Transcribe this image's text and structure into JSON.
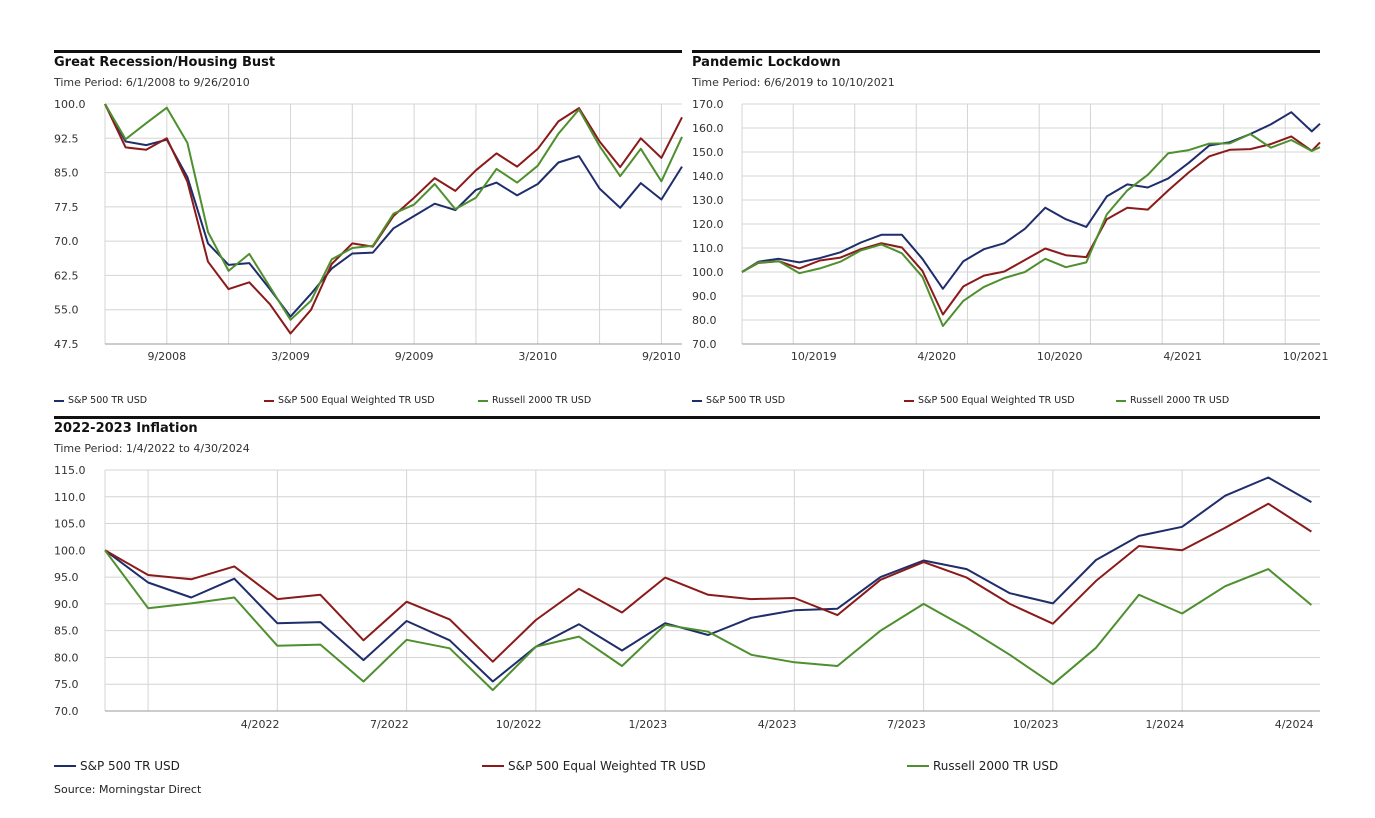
{
  "colors": {
    "sp500": "#1f2d6b",
    "equal": "#8b1a1a",
    "russell": "#4e8f2e",
    "grid": "#d4d4d4",
    "rule": "#111111"
  },
  "source": "Source: Morningstar Direct",
  "chart_data": [
    {
      "type": "line",
      "title": "Great Recession/Housing Bust",
      "subtitle": "Time Period: 6/1/2008 to 9/26/2010",
      "ylim": [
        47.5,
        100.0
      ],
      "yticks": [
        "100.0",
        "92.5",
        "85.0",
        "77.5",
        "70.0",
        "62.5",
        "55.0",
        "47.5"
      ],
      "xlim": [
        0,
        28
      ],
      "xticks": [
        {
          "label": "9/2008",
          "x": 3
        },
        {
          "label": "3/2009",
          "x": 9
        },
        {
          "label": "9/2009",
          "x": 15
        },
        {
          "label": "3/2010",
          "x": 21
        },
        {
          "label": "9/2010",
          "x": 27
        }
      ],
      "xgrid": [
        0,
        3,
        6,
        9,
        12,
        15,
        18,
        21,
        24,
        27
      ],
      "grid": true,
      "legend_position": "bottom",
      "series": [
        {
          "name": "S&P 500 TR USD",
          "color_key": "sp500",
          "x": [
            0,
            1,
            2,
            3,
            4,
            5,
            6,
            7,
            8,
            9,
            10,
            11,
            12,
            13,
            14,
            15,
            16,
            17,
            18,
            19,
            20,
            21,
            22,
            23,
            24,
            25,
            26,
            27,
            28
          ],
          "y": [
            100.0,
            91.8,
            91.0,
            92.2,
            84.0,
            69.5,
            64.8,
            65.2,
            59.5,
            53.5,
            58.5,
            64.0,
            67.3,
            67.5,
            72.8,
            75.5,
            78.2,
            76.8,
            81.2,
            82.8,
            80.0,
            82.5,
            87.2,
            88.6,
            81.5,
            77.3,
            82.7,
            79.1,
            86.3
          ]
        },
        {
          "name": "S&P 500 Equal Weighted TR USD",
          "color_key": "equal",
          "x": [
            0,
            1,
            2,
            3,
            4,
            5,
            6,
            7,
            8,
            9,
            10,
            11,
            12,
            13,
            14,
            15,
            16,
            17,
            18,
            19,
            20,
            21,
            22,
            23,
            24,
            25,
            26,
            27,
            28
          ],
          "y": [
            100.0,
            90.5,
            90.0,
            92.5,
            83.0,
            65.5,
            59.5,
            61.0,
            56.2,
            49.8,
            55.0,
            65.0,
            69.5,
            68.8,
            75.5,
            79.5,
            83.8,
            81.0,
            85.5,
            89.2,
            86.3,
            90.2,
            96.2,
            99.1,
            91.8,
            86.2,
            92.5,
            88.2,
            97.1
          ]
        },
        {
          "name": "Russell 2000 TR USD",
          "color_key": "russell",
          "x": [
            0,
            1,
            2,
            3,
            4,
            5,
            6,
            7,
            8,
            9,
            10,
            11,
            12,
            13,
            14,
            15,
            16,
            17,
            18,
            19,
            20,
            21,
            22,
            23,
            24,
            25,
            26,
            27,
            28
          ],
          "y": [
            100.0,
            92.3,
            95.8,
            99.2,
            91.5,
            72.0,
            63.5,
            67.2,
            60.0,
            52.8,
            57.0,
            66.0,
            68.5,
            69.0,
            76.0,
            78.0,
            82.5,
            77.0,
            79.5,
            85.8,
            82.8,
            86.5,
            93.5,
            98.8,
            90.8,
            84.2,
            90.2,
            83.1,
            92.8
          ]
        }
      ]
    },
    {
      "type": "line",
      "title": "Pandemic Lockdown",
      "subtitle": "Time Period: 6/6/2019 to 10/10/2021",
      "ylim": [
        70.0,
        170.0
      ],
      "yticks": [
        "170.0",
        "160.0",
        "150.0",
        "140.0",
        "130.0",
        "120.0",
        "110.0",
        "100.0",
        "90.0",
        "80.0",
        "70.0"
      ],
      "xlim": [
        0,
        28.2
      ],
      "xticks": [
        {
          "label": "10/2019",
          "x": 3.5
        },
        {
          "label": "4/2020",
          "x": 9.5
        },
        {
          "label": "10/2020",
          "x": 15.5
        },
        {
          "label": "4/2021",
          "x": 21.5
        },
        {
          "label": "10/2021",
          "x": 27.5
        }
      ],
      "xgrid": [
        0,
        2.5,
        5.5,
        8.5,
        11.0,
        14.5,
        17.0,
        20.5,
        23.5,
        26.5
      ],
      "grid": true,
      "legend_position": "bottom",
      "series": [
        {
          "name": "S&P 500 TR USD",
          "color_key": "sp500",
          "x": [
            0,
            0.8,
            1.8,
            2.8,
            3.8,
            4.8,
            5.8,
            6.8,
            7.8,
            8.8,
            9.8,
            10.8,
            11.8,
            12.8,
            13.8,
            14.8,
            15.8,
            16.8,
            17.8,
            18.8,
            19.8,
            20.8,
            21.8,
            22.8,
            23.8,
            24.8,
            25.8,
            26.8,
            27.8,
            28.2
          ],
          "y": [
            100.0,
            104.3,
            105.5,
            104.0,
            105.8,
            108.2,
            112.3,
            115.5,
            115.5,
            105.5,
            93.0,
            104.5,
            109.5,
            112.0,
            118.0,
            126.8,
            122.0,
            118.8,
            131.5,
            136.5,
            135.2,
            139.0,
            145.5,
            152.7,
            154.1,
            157.5,
            161.5,
            166.6,
            158.6,
            161.8
          ]
        },
        {
          "name": "S&P 500 Equal Weighted TR USD",
          "color_key": "equal",
          "x": [
            0,
            0.8,
            1.8,
            2.8,
            3.8,
            4.8,
            5.8,
            6.8,
            7.8,
            8.8,
            9.8,
            10.8,
            11.8,
            12.8,
            13.8,
            14.8,
            15.8,
            16.8,
            17.8,
            18.8,
            19.8,
            20.8,
            21.8,
            22.8,
            23.8,
            24.8,
            25.8,
            26.8,
            27.8,
            28.2
          ],
          "y": [
            100.0,
            103.8,
            104.5,
            101.5,
            104.8,
            106.0,
            109.5,
            112.0,
            110.2,
            100.5,
            82.3,
            94.0,
            98.5,
            100.2,
            105.0,
            109.8,
            107.0,
            106.2,
            122.0,
            126.8,
            126.0,
            134.0,
            141.5,
            148.2,
            150.9,
            151.2,
            153.3,
            156.5,
            150.5,
            154.0
          ]
        },
        {
          "name": "Russell 2000 TR USD",
          "color_key": "russell",
          "x": [
            0,
            0.8,
            1.8,
            2.8,
            3.8,
            4.8,
            5.8,
            6.8,
            7.8,
            8.8,
            9.8,
            10.8,
            11.8,
            12.8,
            13.8,
            14.8,
            15.8,
            16.8,
            17.8,
            18.8,
            19.8,
            20.8,
            21.8,
            22.8,
            23.8,
            24.8,
            25.8,
            26.8,
            27.8,
            28.2
          ],
          "y": [
            100.0,
            104.0,
            104.5,
            99.5,
            101.5,
            104.3,
            109.0,
            111.5,
            107.8,
            98.0,
            77.5,
            88.0,
            93.8,
            97.5,
            100.0,
            105.5,
            102.0,
            104.0,
            124.0,
            134.0,
            140.5,
            149.5,
            150.8,
            153.5,
            153.6,
            157.5,
            151.8,
            155.0,
            150.4,
            152.0
          ]
        }
      ]
    },
    {
      "type": "line",
      "title": "2022-2023 Inflation",
      "subtitle": "Time Period: 1/4/2022 to 4/30/2024",
      "ylim": [
        70.0,
        115.0
      ],
      "yticks": [
        "115.0",
        "110.0",
        "105.0",
        "100.0",
        "95.0",
        "90.0",
        "85.0",
        "80.0",
        "75.0",
        "70.0"
      ],
      "xlim": [
        0,
        28.2
      ],
      "xticks": [
        {
          "label": "4/2022",
          "x": 3.6
        },
        {
          "label": "7/2022",
          "x": 6.6
        },
        {
          "label": "10/2022",
          "x": 9.6
        },
        {
          "label": "1/2023",
          "x": 12.6
        },
        {
          "label": "4/2023",
          "x": 15.6
        },
        {
          "label": "7/2023",
          "x": 18.6
        },
        {
          "label": "10/2023",
          "x": 21.6
        },
        {
          "label": "1/2024",
          "x": 24.6
        },
        {
          "label": "4/2024",
          "x": 27.6
        }
      ],
      "xgrid": [
        0,
        1.0,
        4.0,
        7.0,
        10.0,
        13.0,
        16.0,
        19.0,
        22.0,
        25.0
      ],
      "grid": true,
      "legend_position": "bottom",
      "series": [
        {
          "name": "S&P 500 TR USD",
          "color_key": "sp500",
          "x": [
            0,
            1,
            2,
            3,
            4,
            5,
            6,
            7,
            8,
            9,
            10,
            11,
            12,
            13,
            14,
            15,
            16,
            17,
            18,
            19,
            20,
            21,
            22,
            23,
            24,
            25,
            26,
            27,
            28
          ],
          "y": [
            100.0,
            94.0,
            91.2,
            94.7,
            86.4,
            86.6,
            79.5,
            86.8,
            83.2,
            75.5,
            82.0,
            86.2,
            81.3,
            86.4,
            84.2,
            87.4,
            88.8,
            89.1,
            95.0,
            98.1,
            96.5,
            92.0,
            90.1,
            98.2,
            102.7,
            104.4,
            110.2,
            113.6,
            109.0
          ]
        },
        {
          "name": "S&P 500 Equal Weighted TR USD",
          "color_key": "equal",
          "x": [
            0,
            1,
            2,
            3,
            4,
            5,
            6,
            7,
            8,
            9,
            10,
            11,
            12,
            13,
            14,
            15,
            16,
            17,
            18,
            19,
            20,
            21,
            22,
            23,
            24,
            25,
            26,
            27,
            28
          ],
          "y": [
            100.0,
            95.4,
            94.6,
            97.0,
            90.9,
            91.7,
            83.2,
            90.4,
            87.1,
            79.2,
            87.0,
            92.8,
            88.4,
            94.9,
            91.7,
            90.9,
            91.1,
            87.9,
            94.5,
            97.8,
            94.9,
            90.0,
            86.3,
            94.3,
            100.8,
            100.0,
            104.2,
            108.7,
            103.5
          ]
        },
        {
          "name": "Russell 2000 TR USD",
          "color_key": "russell",
          "x": [
            0,
            1,
            2,
            3,
            4,
            5,
            6,
            7,
            8,
            9,
            10,
            11,
            12,
            13,
            14,
            15,
            16,
            17,
            18,
            19,
            20,
            21,
            22,
            23,
            24,
            25,
            26,
            27,
            28
          ],
          "y": [
            100.0,
            89.2,
            90.1,
            91.2,
            82.2,
            82.4,
            75.5,
            83.3,
            81.7,
            73.9,
            82.0,
            83.9,
            78.4,
            86.1,
            84.8,
            80.5,
            79.1,
            78.4,
            85.0,
            90.0,
            85.5,
            80.5,
            75.0,
            81.8,
            91.7,
            88.2,
            93.3,
            96.5,
            89.8
          ]
        }
      ]
    }
  ]
}
